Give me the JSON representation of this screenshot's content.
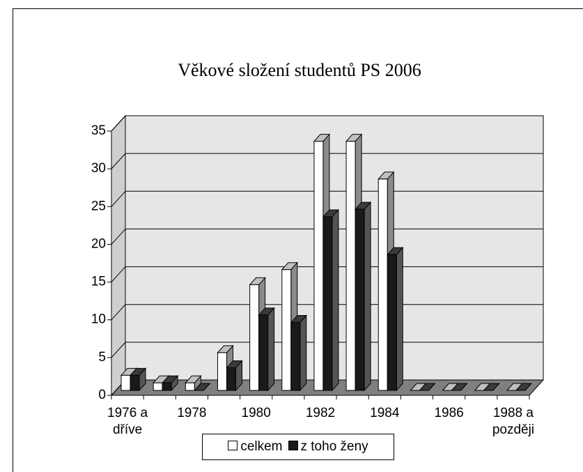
{
  "chart_data": {
    "type": "bar3d",
    "title": "Věkové složení studentů PS 2006",
    "categories": [
      "1976 a dříve",
      null,
      "1978",
      null,
      "1980",
      null,
      "1982",
      null,
      "1984",
      null,
      "1986",
      null,
      "1988 a později"
    ],
    "series": [
      {
        "name": "celkem",
        "color": "#ffffff",
        "values": [
          2,
          1,
          1,
          5,
          14,
          16,
          33,
          33,
          28,
          0,
          0,
          0,
          0
        ]
      },
      {
        "name": "z toho ženy",
        "color": "#1a1a1a",
        "values": [
          2,
          1,
          0,
          3,
          10,
          9,
          23,
          24,
          18,
          0,
          0,
          0,
          0
        ]
      }
    ],
    "ylim": [
      0,
      35
    ],
    "yticks": [
      0,
      5,
      10,
      15,
      20,
      25,
      30,
      35
    ],
    "grid": true
  }
}
